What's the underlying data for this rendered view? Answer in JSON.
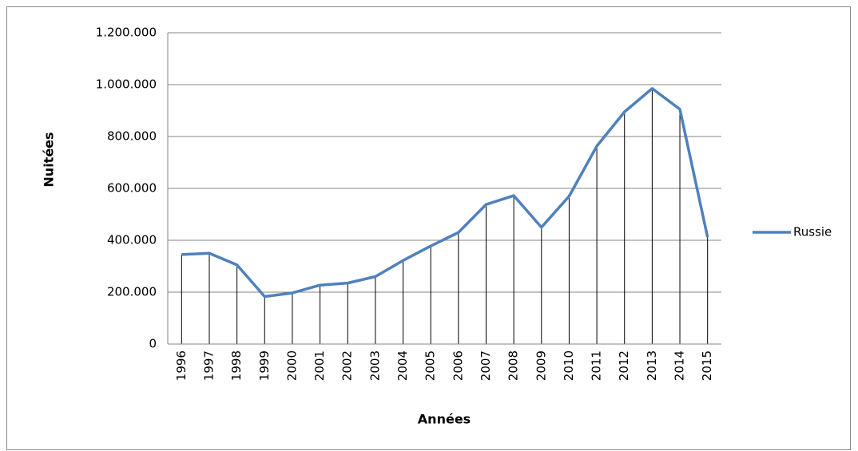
{
  "chart_data": {
    "type": "line",
    "xlabel": "Années",
    "ylabel": "Nuitées",
    "categories": [
      "1996",
      "1997",
      "1998",
      "1999",
      "2000",
      "2001",
      "2002",
      "2003",
      "2004",
      "2005",
      "2006",
      "2007",
      "2008",
      "2009",
      "2010",
      "2011",
      "2012",
      "2013",
      "2014",
      "2015"
    ],
    "series": [
      {
        "name": "Russie",
        "color": "#4f81bd",
        "values": [
          345000,
          350000,
          305000,
          183000,
          197000,
          227000,
          235000,
          260000,
          322000,
          378000,
          430000,
          538000,
          572000,
          450000,
          570000,
          763000,
          895000,
          985000,
          905000,
          412000
        ]
      }
    ],
    "ylim": [
      0,
      1200000
    ],
    "yticks": [
      0,
      {
        "value": 200000,
        "label": "200.000"
      },
      {
        "value": 400000,
        "label": "400.000"
      },
      {
        "value": 600000,
        "label": "600.000"
      },
      {
        "value": 800000,
        "label": "800.000"
      },
      {
        "value": 1000000,
        "label": "1.000.000"
      },
      {
        "value": 1200000,
        "label": "1.200.000"
      }
    ],
    "grid": true,
    "drop_lines": true,
    "legend": "right"
  }
}
